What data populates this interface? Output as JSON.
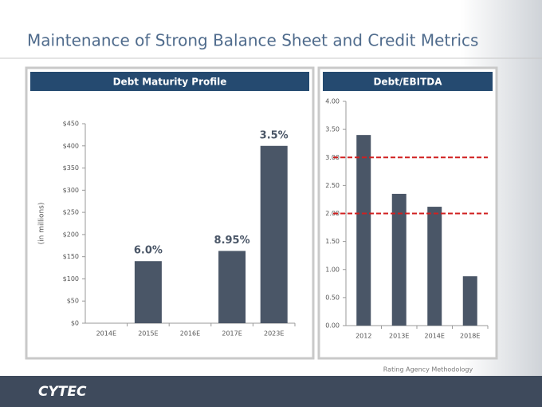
{
  "title": "Maintenance of Strong Balance Sheet and Credit Metrics",
  "note": "Rating Agency Methodology",
  "logo": "CYTEC",
  "chart_data": [
    {
      "type": "bar",
      "title": "Debt Maturity Profile",
      "y_label": "(in millions)",
      "categories": [
        "2014E",
        "2015E",
        "2016E",
        "2017E",
        "2023E"
      ],
      "values": [
        null,
        140,
        null,
        163,
        400
      ],
      "bar_labels": [
        null,
        "6.0%",
        null,
        "8.95%",
        "3.5%"
      ],
      "color": "#4a5667",
      "ylim": [
        0,
        450
      ],
      "yticks": [
        {
          "value": 0,
          "label": "$0"
        },
        {
          "value": 50,
          "label": "$50"
        },
        {
          "value": 100,
          "label": "$100"
        },
        {
          "value": 150,
          "label": "$150"
        },
        {
          "value": 200,
          "label": "$200"
        },
        {
          "value": 250,
          "label": "$250"
        },
        {
          "value": 300,
          "label": "$300"
        },
        {
          "value": 350,
          "label": "$350"
        },
        {
          "value": 400,
          "label": "$400"
        },
        {
          "value": 450,
          "label": "$450"
        }
      ]
    },
    {
      "type": "bar",
      "title": "Debt/EBITDA",
      "categories": [
        "2012",
        "2013E",
        "2014E",
        "2018E"
      ],
      "values": [
        3.4,
        2.35,
        2.12,
        0.88
      ],
      "color": "#4a5667",
      "ylim": [
        0,
        4
      ],
      "yticks": [
        {
          "value": 0,
          "label": "0.00"
        },
        {
          "value": 0.5,
          "label": "0.50"
        },
        {
          "value": 1,
          "label": "1.00"
        },
        {
          "value": 1.5,
          "label": "1.50"
        },
        {
          "value": 2,
          "label": "2.00"
        },
        {
          "value": 2.5,
          "label": "2.50"
        },
        {
          "value": 3,
          "label": "3.00"
        },
        {
          "value": 3.5,
          "label": "3.50"
        },
        {
          "value": 4,
          "label": "4.00"
        }
      ],
      "reference_lines": [
        {
          "value": 3,
          "color": "#d02020"
        },
        {
          "value": 2,
          "color": "#d02020"
        }
      ]
    }
  ]
}
